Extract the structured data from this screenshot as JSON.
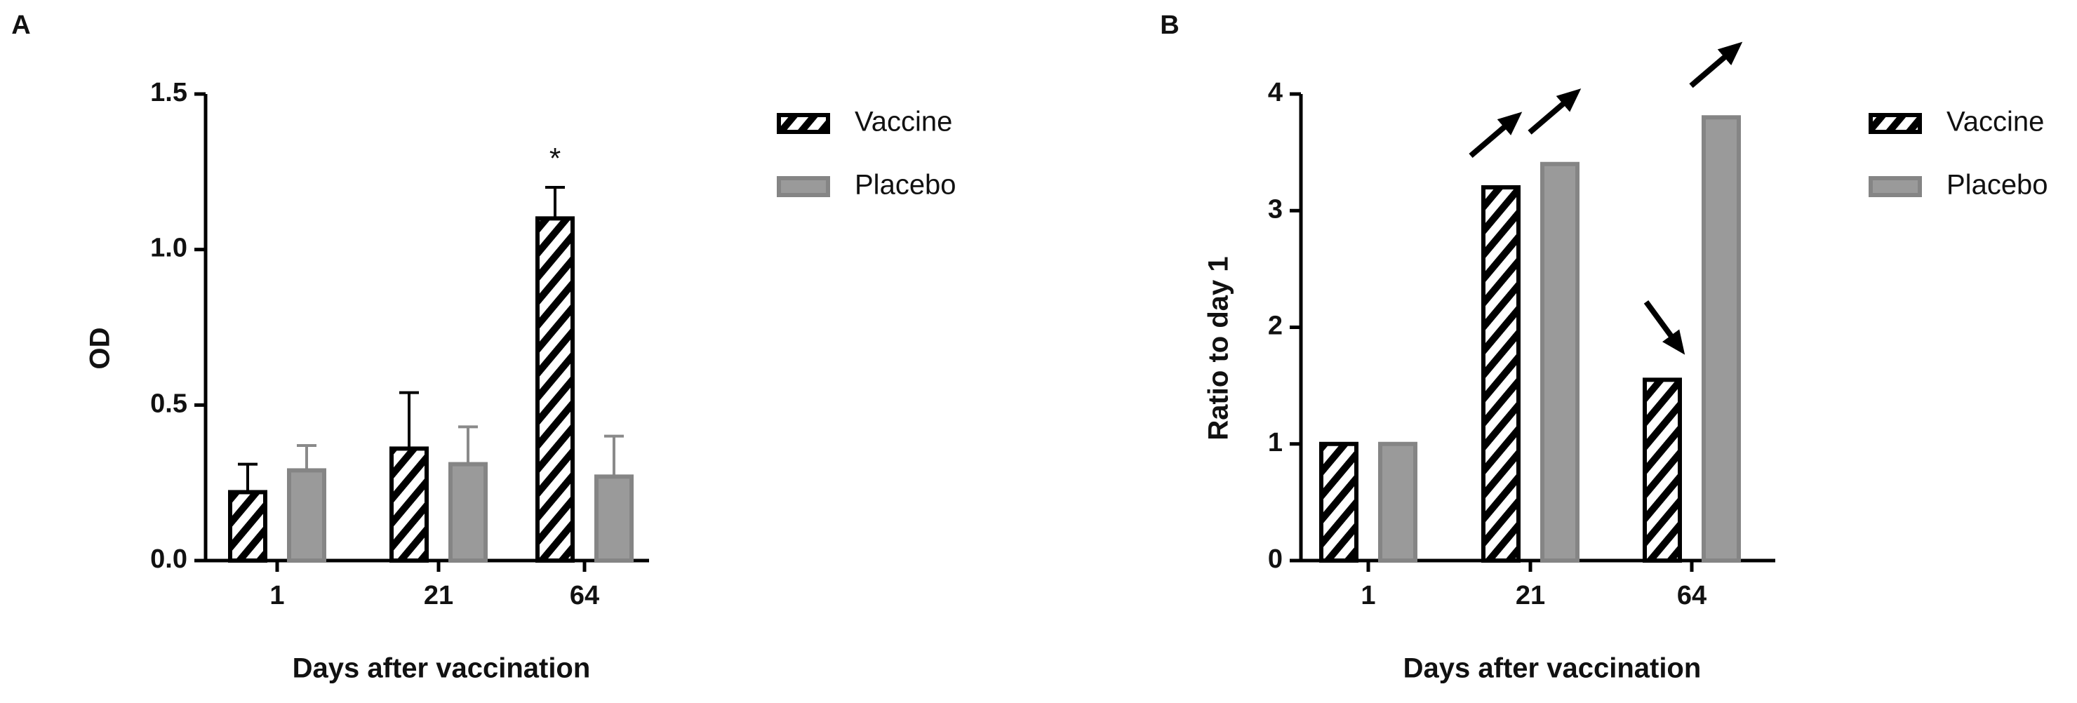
{
  "chart_data": [
    {
      "type": "bar",
      "panel_label": "A",
      "y_label": "OD",
      "x_label": "Days after vaccination",
      "categories": [
        "1",
        "21",
        "64"
      ],
      "series": [
        {
          "name": "Vaccine",
          "color": "#000000",
          "hatch": true,
          "values": [
            0.22,
            0.36,
            1.1
          ],
          "errors": [
            0.09,
            0.18,
            0.1
          ]
        },
        {
          "name": "Placebo",
          "color": "#9a9a9a",
          "hatch": false,
          "values": [
            0.29,
            0.31,
            0.27
          ],
          "errors": [
            0.08,
            0.12,
            0.13
          ]
        }
      ],
      "ylim": [
        0,
        1.5
      ],
      "yticks": [
        {
          "value": 0,
          "label": "0.0"
        },
        0.5,
        {
          "value": 1,
          "label": "1.0"
        },
        1.5
      ],
      "legend": "right",
      "annotations": [
        {
          "text": "*",
          "series": "Vaccine",
          "category": "64"
        }
      ]
    },
    {
      "type": "bar",
      "panel_label": "B",
      "y_label": "Ratio to day 1",
      "x_label": "Days after vaccination",
      "categories": [
        "1",
        "21",
        "64"
      ],
      "series": [
        {
          "name": "Vaccine",
          "color": "#000000",
          "hatch": true,
          "values": [
            1,
            3.2,
            1.55
          ]
        },
        {
          "name": "Placebo",
          "color": "#9a9a9a",
          "hatch": false,
          "values": [
            1,
            3.4,
            3.8
          ]
        }
      ],
      "ylim": [
        0,
        4
      ],
      "yticks": [
        0,
        1,
        2,
        3,
        4
      ],
      "legend": "right"
    }
  ]
}
